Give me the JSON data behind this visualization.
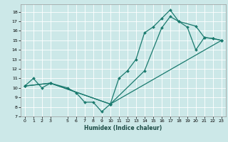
{
  "xlabel": "Humidex (Indice chaleur)",
  "bg_color": "#cce8e8",
  "line_color": "#1a7a6e",
  "xlim": [
    -0.5,
    23.5
  ],
  "ylim": [
    7,
    18.8
  ],
  "yticks": [
    7,
    8,
    9,
    10,
    11,
    12,
    13,
    14,
    15,
    16,
    17,
    18
  ],
  "xticks": [
    0,
    1,
    2,
    3,
    5,
    6,
    7,
    8,
    9,
    10,
    11,
    12,
    13,
    14,
    15,
    16,
    17,
    18,
    19,
    20,
    21,
    22,
    23
  ],
  "series": [
    {
      "x": [
        0,
        1,
        2,
        3,
        5,
        6,
        7,
        8,
        9,
        10,
        11,
        12,
        13,
        14,
        15,
        16,
        17,
        18,
        19,
        20,
        21,
        22,
        23
      ],
      "y": [
        10.2,
        11.0,
        10.0,
        10.5,
        10.0,
        9.5,
        8.5,
        8.5,
        7.5,
        8.3,
        11.0,
        11.8,
        13.0,
        15.8,
        16.4,
        17.3,
        18.2,
        17.0,
        16.4,
        14.0,
        15.3,
        15.2,
        15.0
      ]
    },
    {
      "x": [
        0,
        3,
        10,
        14,
        16,
        17,
        18,
        20,
        21,
        22,
        23
      ],
      "y": [
        10.2,
        10.5,
        8.3,
        11.8,
        16.3,
        17.5,
        17.0,
        16.5,
        15.3,
        15.2,
        15.0
      ]
    },
    {
      "x": [
        0,
        3,
        10,
        23
      ],
      "y": [
        10.2,
        10.5,
        8.3,
        15.0
      ]
    }
  ]
}
